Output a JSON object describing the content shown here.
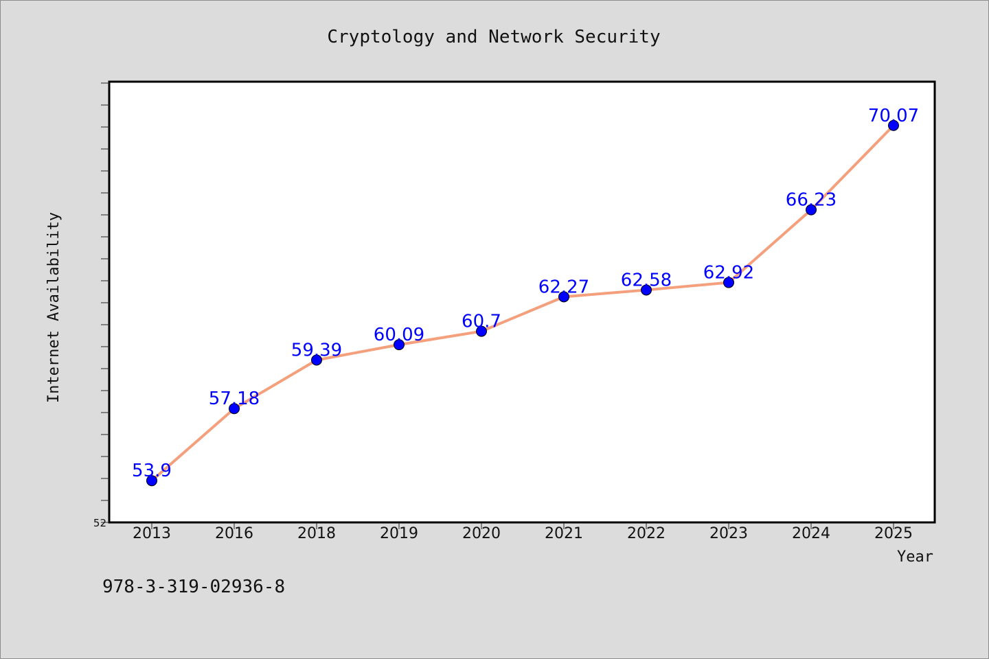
{
  "figure": {
    "footer_text": "978-3-319-02936-8",
    "background_color": "#dcdcdc",
    "plot_background_color": "#ffffff"
  },
  "chart_data": {
    "type": "line",
    "title": "Cryptology and Network Security",
    "xlabel": "Year",
    "ylabel": "Internet Availability",
    "categories": [
      "2013",
      "2016",
      "2018",
      "2019",
      "2020",
      "2021",
      "2022",
      "2023",
      "2024",
      "2025"
    ],
    "series": [
      {
        "values": [
          53.9,
          57.18,
          59.39,
          60.09,
          60.7,
          62.27,
          62.58,
          62.92,
          66.23,
          70.07
        ],
        "data_labels": [
          "53.9",
          "57.18",
          "59.39",
          "60.09",
          "60.7",
          "62.27",
          "62.58",
          "62.92",
          "66.23",
          "70.07"
        ],
        "line_color": "#f4a07d",
        "marker_color": "#0000ff",
        "label_color": "#0000ff"
      }
    ],
    "ylim": [
      52,
      72
    ],
    "y_tick_labels": [
      "52"
    ],
    "minor_tick_step": 1,
    "grid": false,
    "legend": "none"
  }
}
